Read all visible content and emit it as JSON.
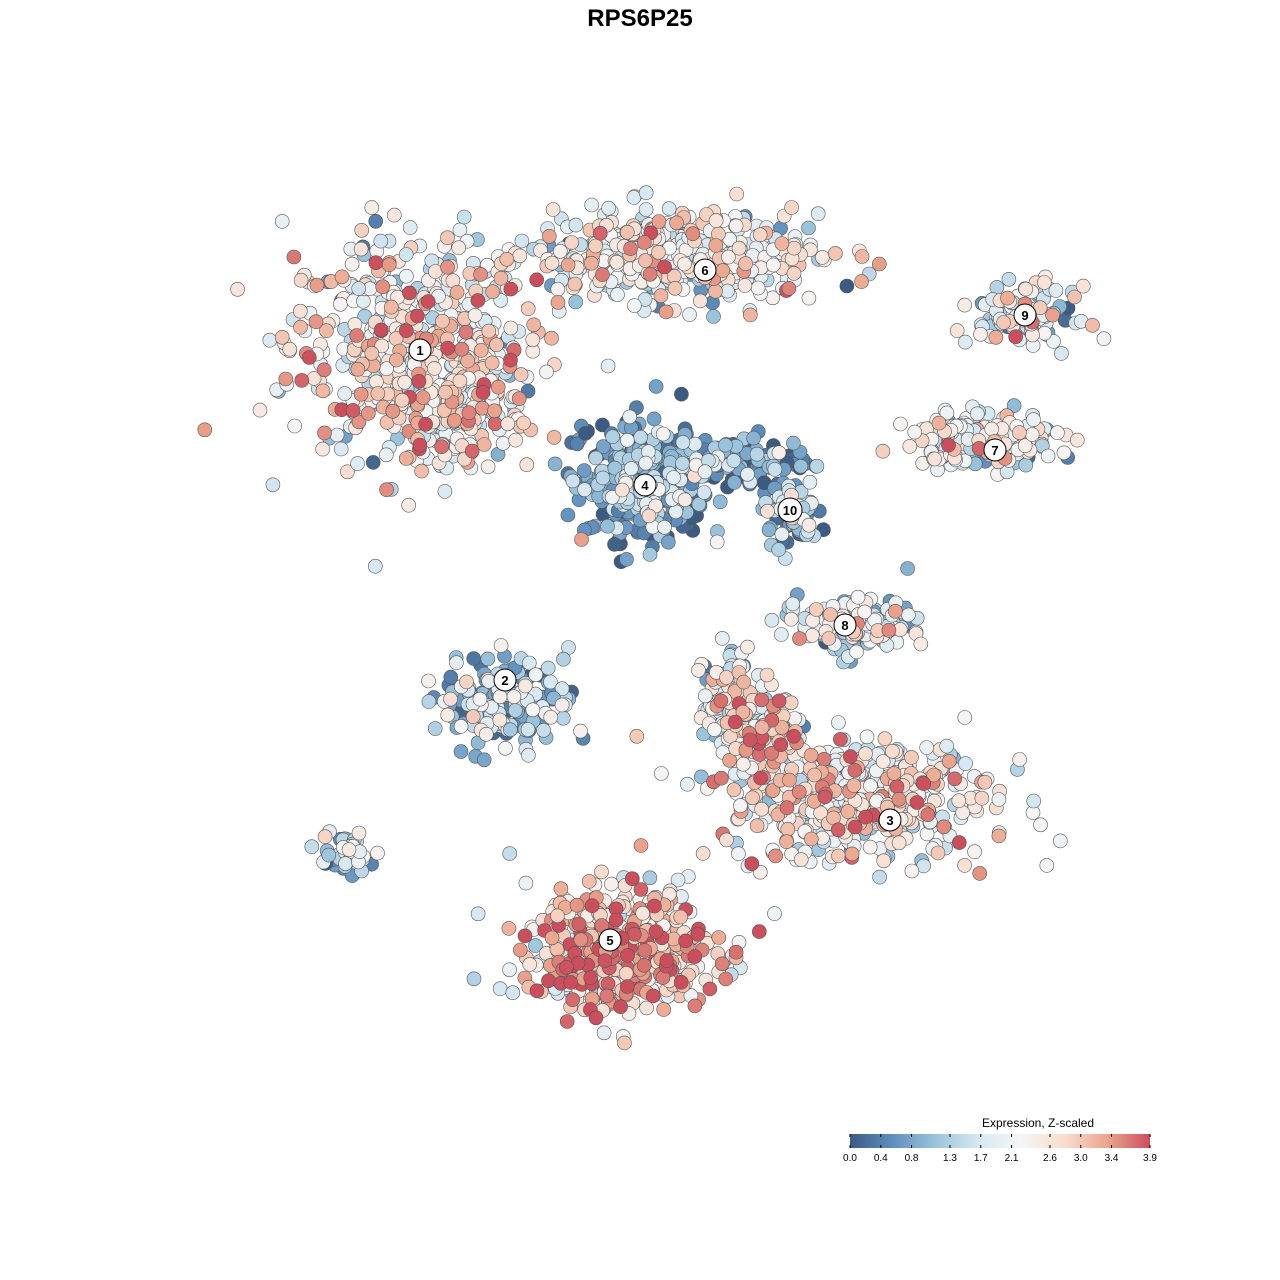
{
  "chart_data": {
    "type": "scatter",
    "title": "RPS6P25",
    "xlabel": "",
    "ylabel": "",
    "grid": false,
    "legend": {
      "title": "Expression, Z-scaled",
      "placement": "bottom-right",
      "ticks": [
        "0.0",
        "0.4",
        "0.8",
        "1.3",
        "1.7",
        "2.1",
        "2.6",
        "3.0",
        "3.4",
        "3.9"
      ],
      "range": [
        0.0,
        3.9
      ],
      "colors": [
        "#3B5B83",
        "#5F8FBE",
        "#9BC4DC",
        "#D7E8F2",
        "#F5F5F5",
        "#F9DDCF",
        "#EBA58E",
        "#CB4E5C"
      ]
    },
    "clusters": [
      {
        "label": "1",
        "x": -22.0,
        "y": 21.0,
        "mean": 2.3
      },
      {
        "label": "2",
        "x": -13.5,
        "y": -12.0,
        "mean": 1.3
      },
      {
        "label": "3",
        "x": 25.0,
        "y": -26.0,
        "mean": 2.3
      },
      {
        "label": "4",
        "x": 0.5,
        "y": 7.5,
        "mean": 0.7
      },
      {
        "label": "5",
        "x": -3.0,
        "y": -38.0,
        "mean": 2.8
      },
      {
        "label": "6",
        "x": 6.5,
        "y": 29.0,
        "mean": 2.0
      },
      {
        "label": "7",
        "x": 35.5,
        "y": 11.0,
        "mean": 1.9
      },
      {
        "label": "8",
        "x": 20.5,
        "y": -6.5,
        "mean": 1.6
      },
      {
        "label": "9",
        "x": 38.5,
        "y": 24.5,
        "mean": 1.8
      },
      {
        "label": "10",
        "x": 15.0,
        "y": 5.0,
        "mean": 0.9
      }
    ]
  }
}
